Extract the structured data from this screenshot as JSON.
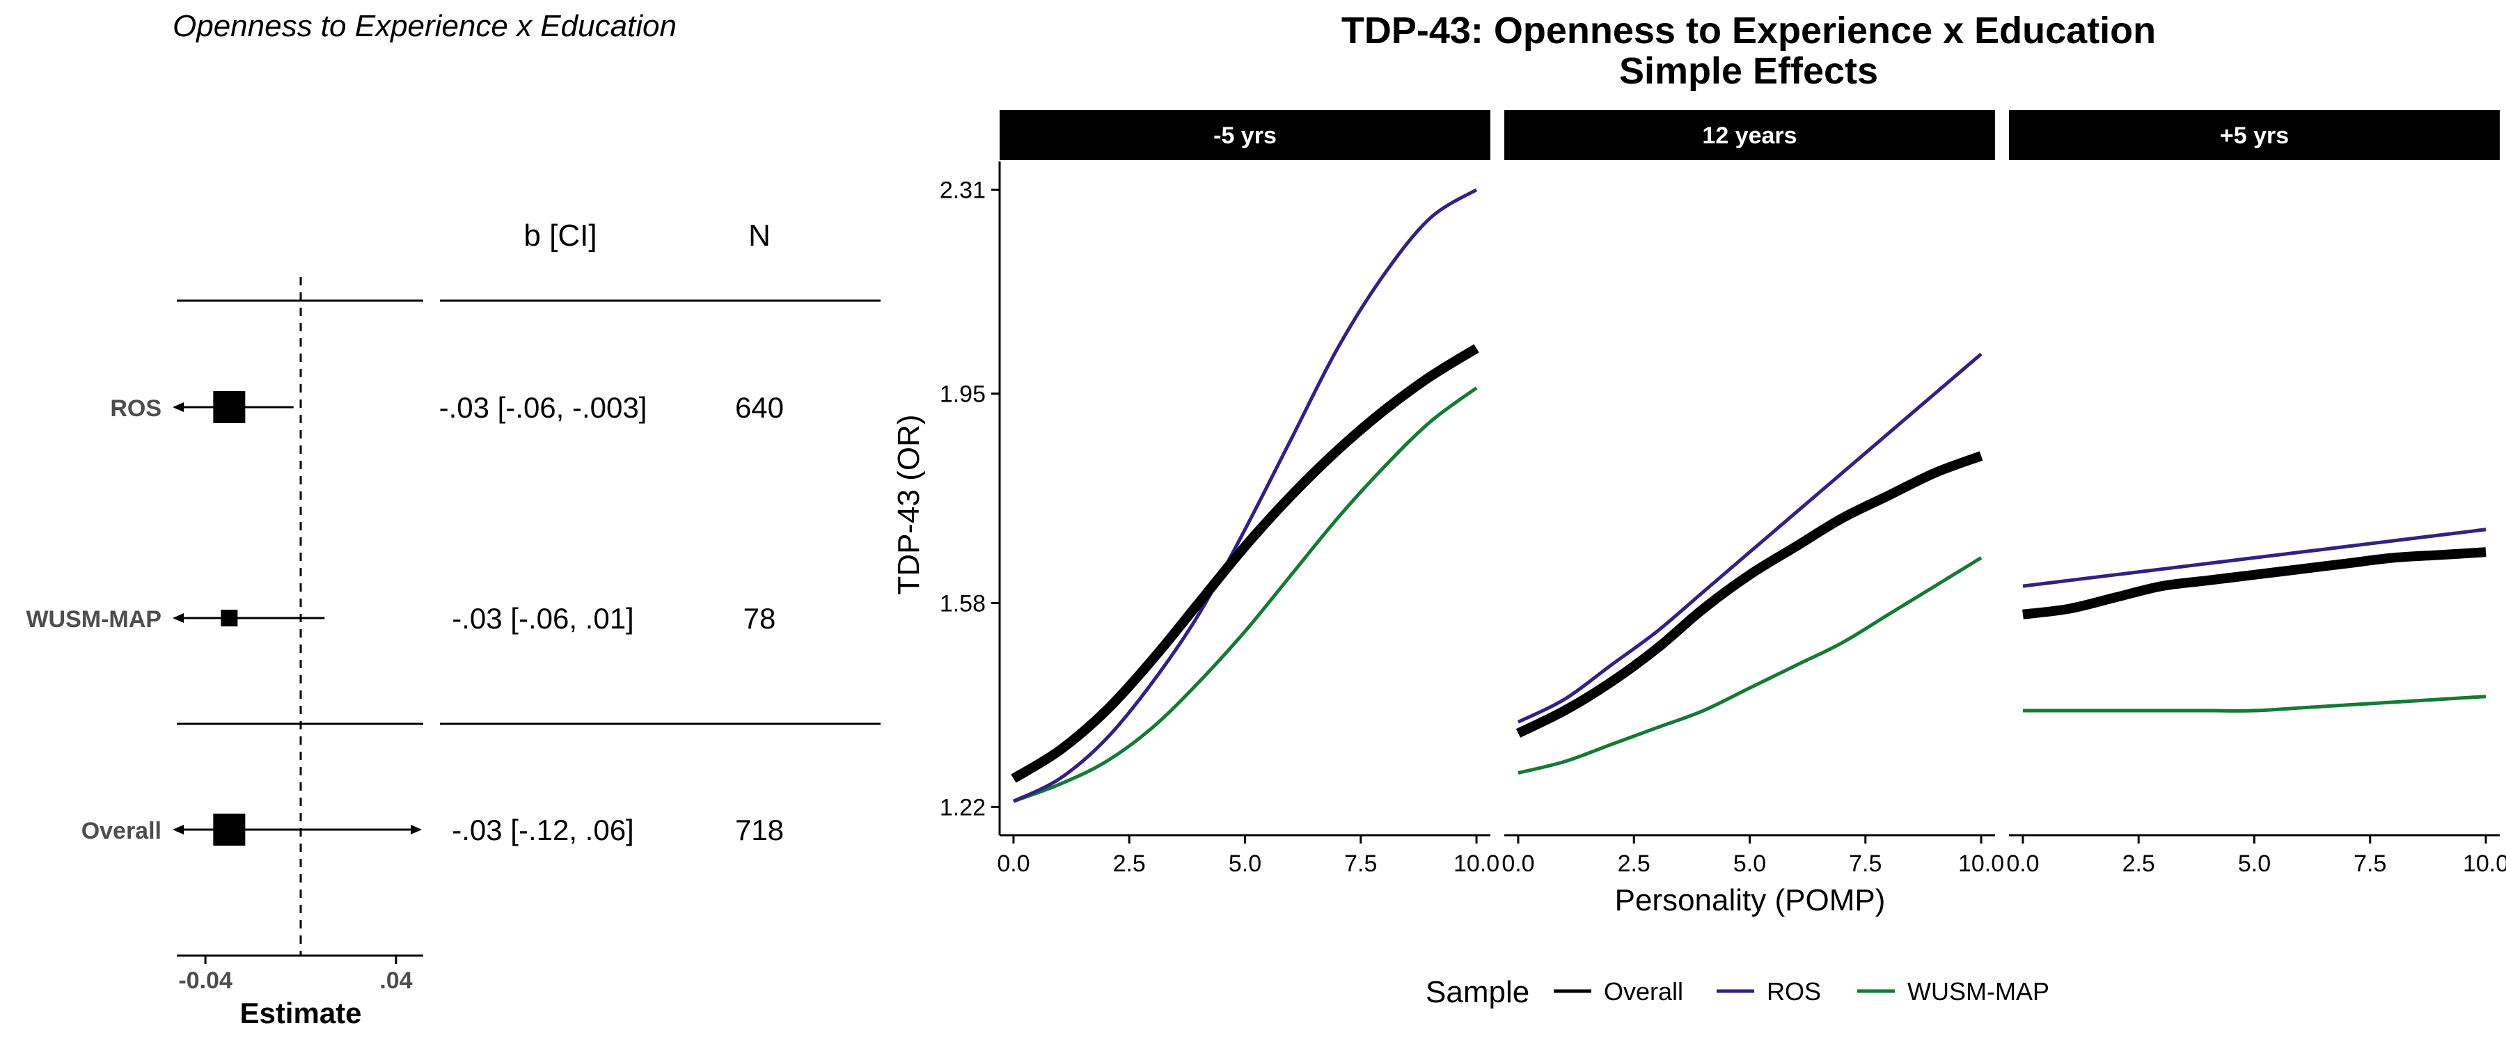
{
  "forest": {
    "title": "Openness to Experience x Education",
    "col_b": "b [CI]",
    "col_n": "N",
    "xlabel": "Estimate",
    "xticks": [
      {
        "value": -0.04,
        "label": "-0.04"
      },
      {
        "value": 0.04,
        "label": ".04"
      }
    ],
    "xlim": [
      -0.045,
      0.045
    ],
    "ref_line": 0,
    "rows": [
      {
        "label": "ROS",
        "est": -0.03,
        "lo": -0.06,
        "hi": -0.003,
        "ci_text": "-.03 [-.06, -.003]",
        "n": "640",
        "size": "large"
      },
      {
        "label": "WUSM-MAP",
        "est": -0.03,
        "lo": -0.06,
        "hi": 0.01,
        "ci_text": "-.03 [-.06, .01]",
        "n": "78",
        "size": "small"
      },
      {
        "label": "Overall",
        "est": -0.03,
        "lo": -0.12,
        "hi": 0.06,
        "ci_text": "-.03 [-.12, .06]",
        "n": "718",
        "size": "large"
      }
    ]
  },
  "chart_data": {
    "type": "line",
    "title": "TDP-43: Openness to Experience x Education",
    "subtitle": "Simple Effects",
    "xlabel": "Personality (POMP)",
    "ylabel": "TDP-43 (OR)",
    "xlim": [
      -0.3,
      10.3
    ],
    "ylim": [
      1.17,
      2.36
    ],
    "xticks": [
      0,
      2.5,
      5,
      7.5,
      10
    ],
    "xtick_labels": [
      "0.0",
      "2.5",
      "5.0",
      "7.5",
      "10.0"
    ],
    "yticks": [
      1.22,
      1.58,
      1.95,
      2.31
    ],
    "ytick_labels": [
      "1.22",
      "1.58",
      "1.95",
      "2.31"
    ],
    "grid": false,
    "legend": {
      "title": "Sample",
      "position": "bottom"
    },
    "x": [
      0,
      1,
      2,
      3,
      4,
      5,
      6,
      7,
      8,
      9,
      10
    ],
    "colors": {
      "Overall": "#000000",
      "ROS": "#2e2384",
      "WUSM-MAP": "#157a34"
    },
    "panels": [
      {
        "label": "-5 yrs",
        "series": [
          {
            "name": "Overall",
            "values": [
              1.27,
              1.32,
              1.39,
              1.48,
              1.58,
              1.68,
              1.77,
              1.85,
              1.92,
              1.98,
              2.03
            ]
          },
          {
            "name": "ROS",
            "values": [
              1.23,
              1.27,
              1.34,
              1.44,
              1.56,
              1.71,
              1.87,
              2.03,
              2.16,
              2.26,
              2.31
            ]
          },
          {
            "name": "WUSM-MAP",
            "values": [
              1.23,
              1.26,
              1.3,
              1.36,
              1.44,
              1.53,
              1.63,
              1.73,
              1.82,
              1.9,
              1.96
            ]
          }
        ]
      },
      {
        "label": "12 years",
        "series": [
          {
            "name": "Overall",
            "values": [
              1.35,
              1.39,
              1.44,
              1.5,
              1.57,
              1.63,
              1.68,
              1.73,
              1.77,
              1.81,
              1.84
            ]
          },
          {
            "name": "ROS",
            "values": [
              1.37,
              1.41,
              1.47,
              1.53,
              1.6,
              1.67,
              1.74,
              1.81,
              1.88,
              1.95,
              2.02
            ]
          },
          {
            "name": "WUSM-MAP",
            "values": [
              1.28,
              1.3,
              1.33,
              1.36,
              1.39,
              1.43,
              1.47,
              1.51,
              1.56,
              1.61,
              1.66
            ]
          }
        ]
      },
      {
        "label": "+5 yrs",
        "series": [
          {
            "name": "Overall",
            "values": [
              1.56,
              1.57,
              1.59,
              1.61,
              1.62,
              1.63,
              1.64,
              1.65,
              1.66,
              1.665,
              1.67
            ]
          },
          {
            "name": "ROS",
            "values": [
              1.61,
              1.62,
              1.63,
              1.64,
              1.65,
              1.66,
              1.67,
              1.68,
              1.69,
              1.7,
              1.71
            ]
          },
          {
            "name": "WUSM-MAP",
            "values": [
              1.39,
              1.39,
              1.39,
              1.39,
              1.39,
              1.39,
              1.395,
              1.4,
              1.405,
              1.41,
              1.415
            ]
          }
        ]
      }
    ]
  }
}
